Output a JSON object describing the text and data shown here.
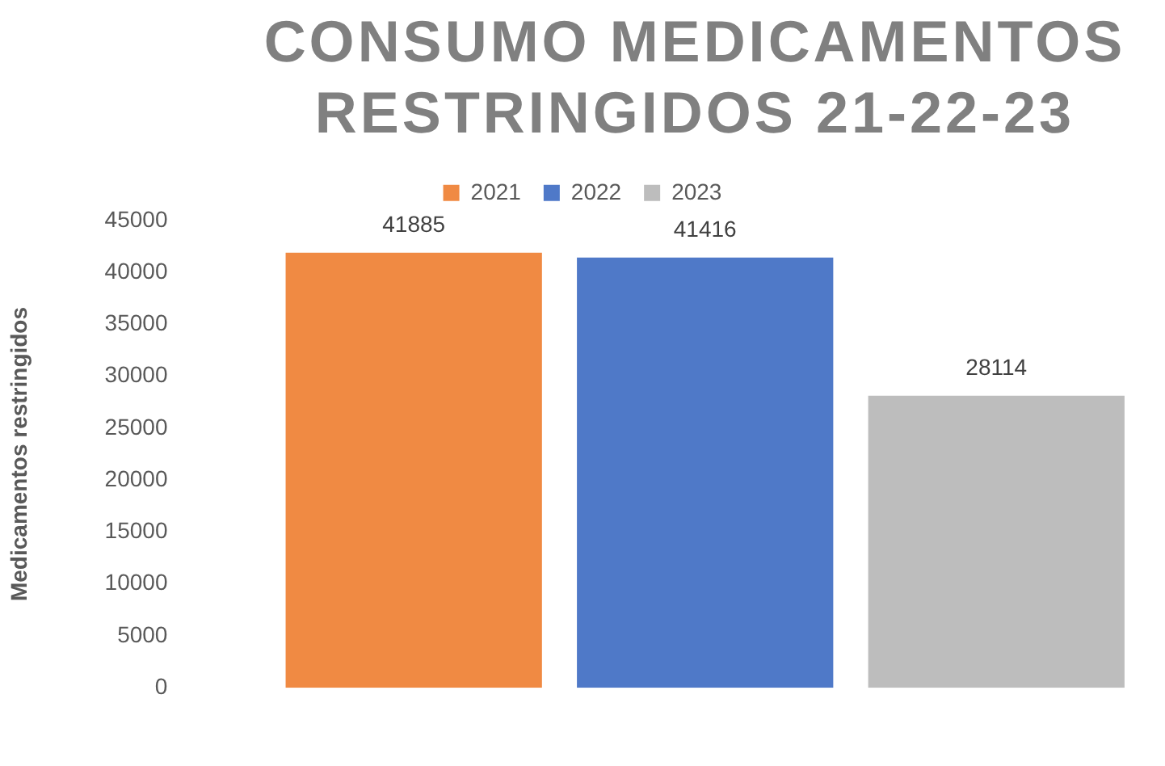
{
  "chart_data": {
    "type": "bar",
    "title": "CONSUMO MEDICAMENTOS RESTRINGIDOS 21-22-23",
    "ylabel": "Medicamentos restringidos",
    "categories": [
      null
    ],
    "series": [
      {
        "name": "2021",
        "color": "#f08a43",
        "values": [
          41885
        ]
      },
      {
        "name": "2022",
        "color": "#4f79c8",
        "values": [
          41416
        ]
      },
      {
        "name": "2023",
        "color": "#bdbdbd",
        "values": [
          28114
        ]
      }
    ],
    "ylim": [
      0,
      45000
    ],
    "yticks": [
      0,
      5000,
      10000,
      15000,
      20000,
      25000,
      30000,
      35000,
      40000,
      45000
    ],
    "grid": false,
    "legend": "top",
    "data_labels": true
  }
}
